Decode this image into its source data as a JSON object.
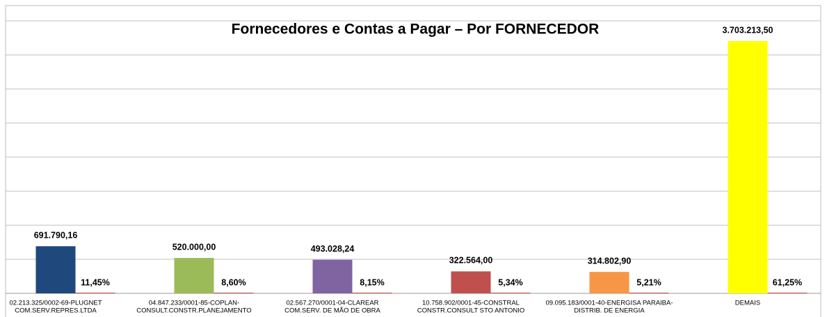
{
  "chart_data": {
    "type": "bar",
    "title": "Fornecedores e Contas a Pagar – Por FORNECEDOR",
    "categories": [
      [
        "02.213.325/0002-69-PLUGNET",
        "COM.SERV.REPRES.LTDA"
      ],
      [
        "04.847.233/0001-85-COPLAN-",
        "CONSULT.CONSTR.PLANEJAMENTO"
      ],
      [
        "02.567.270/0001-04-CLAREAR",
        "COM.SERV. DE MÃO DE OBRA"
      ],
      [
        "10.758.902/0001-45-CONSTRAL",
        "CONSTR.CONSULT STO ANTONIO"
      ],
      [
        "09.095.183/0001-40-ENERGISA PARAIBA-",
        "DISTRIB. DE ENERGIA"
      ],
      [
        "DEMAIS"
      ]
    ],
    "series": [
      {
        "values": [
          691790.16,
          520000.0,
          493028.24,
          322564.0,
          314802.9,
          3703213.5
        ],
        "value_labels": [
          "691.790,16",
          "520.000,00",
          "493.028,24",
          "322.564,00",
          "314.802,90",
          "3.703.213,50"
        ],
        "colors": [
          "#1f497d",
          "#9bbb59",
          "#8064a2",
          "#c0504d",
          "#f79646",
          "#ffff00"
        ]
      },
      {
        "values": [
          11.45,
          8.6,
          8.15,
          5.34,
          5.21,
          61.25
        ],
        "value_labels": [
          "11,45%",
          "8,60%",
          "8,15%",
          "5,34%",
          "5,21%",
          "61,25%"
        ],
        "color": "#c0504d"
      }
    ],
    "ylim": [
      0,
      4000000
    ],
    "yticks": [
      0,
      500000,
      1000000,
      1500000,
      2000000,
      2500000,
      3000000,
      3500000,
      4000000
    ],
    "grid": true
  }
}
